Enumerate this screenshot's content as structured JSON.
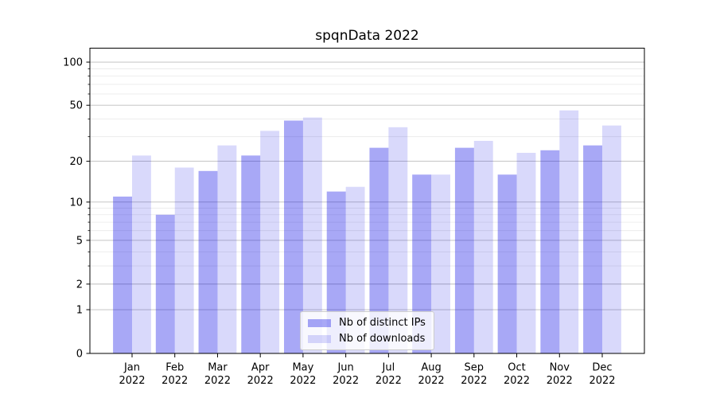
{
  "figure": {
    "title": "spqnData 2022"
  },
  "legend": {
    "position": "lower center",
    "items": [
      {
        "label": "Nb of distinct IPs"
      },
      {
        "label": "Nb of downloads"
      }
    ]
  },
  "chart_data": {
    "type": "bar",
    "title": "spqnData 2022",
    "categories": [
      "Jan",
      "Feb",
      "Mar",
      "Apr",
      "May",
      "Jun",
      "Jul",
      "Aug",
      "Sep",
      "Oct",
      "Nov",
      "Dec"
    ],
    "x_tick_sublabel": "2022",
    "series": [
      {
        "name": "Nb of distinct IPs",
        "color": "rgba(0,0,230,0.34)",
        "solid_color": "#a8a8f6",
        "values": [
          11,
          8,
          17,
          22,
          39,
          12,
          25,
          16,
          25,
          16,
          24,
          26
        ]
      },
      {
        "name": "Nb of downloads",
        "color": "rgba(0,0,230,0.15)",
        "solid_color": "#d8d8f8",
        "values": [
          22,
          18,
          26,
          33,
          41,
          13,
          35,
          16,
          28,
          23,
          46,
          36
        ]
      }
    ],
    "xlabel": "",
    "ylabel": "",
    "y_axis": {
      "scale": "symlog",
      "major_ticks": [
        0,
        1,
        2,
        5,
        10,
        20,
        50,
        100
      ],
      "minor_ticks": [
        3,
        4,
        6,
        7,
        8,
        9,
        30,
        40,
        60,
        70,
        80,
        90
      ],
      "ylim": [
        0,
        125
      ]
    },
    "grid": {
      "axis": "y",
      "major_color": "#bdbdbd",
      "minor_color": "#e9e9e9"
    },
    "axis_color": "#000000",
    "tick_label_color": "#000000",
    "legend_position": "lower center"
  }
}
